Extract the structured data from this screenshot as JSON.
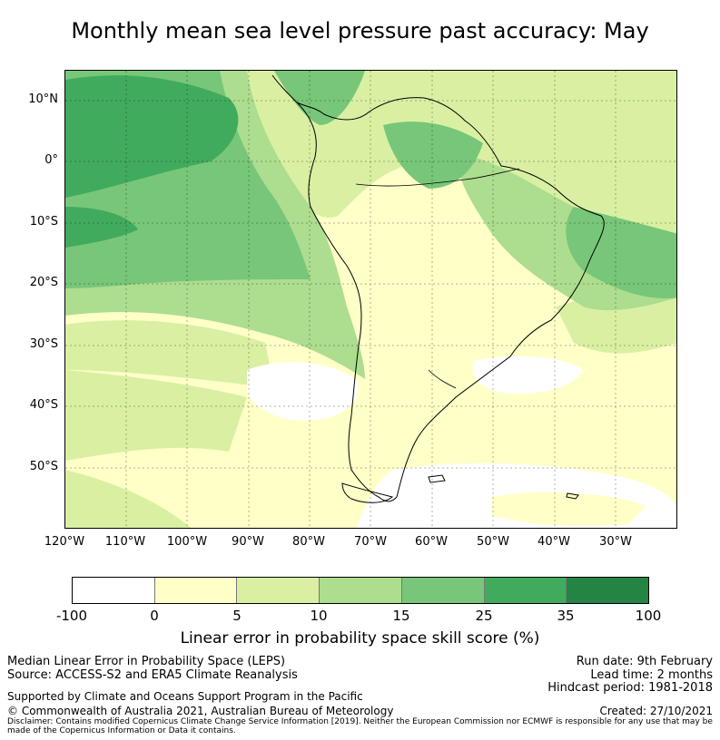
{
  "title": "Monthly mean sea level pressure past accuracy: May",
  "map": {
    "lat_labels": [
      "10°N",
      "0°",
      "10°S",
      "20°S",
      "30°S",
      "40°S",
      "50°S"
    ],
    "lon_labels": [
      "120°W",
      "110°W",
      "100°W",
      "90°W",
      "80°W",
      "70°W",
      "60°W",
      "50°W",
      "40°W",
      "30°W"
    ],
    "region": "South America and surrounding Pacific and Atlantic oceans"
  },
  "colorbar": {
    "ticks": [
      "-100",
      "0",
      "5",
      "10",
      "15",
      "25",
      "35",
      "100"
    ],
    "colors": [
      "#ffffff",
      "#ffffc8",
      "#d9f0a3",
      "#addd8e",
      "#78c679",
      "#41ab5d",
      "#238443"
    ],
    "label": "Linear error in probability space skill score (%)"
  },
  "footer": {
    "left": [
      "Median Linear Error in Probability Space (LEPS)",
      "Source: ACCESS-S2 and ERA5 Climate Reanalysis"
    ],
    "right": [
      "Run date: 9th February",
      "Lead time: 2 months",
      "Hindcast period: 1981-2018"
    ],
    "support": "Supported by Climate and Oceans Support Program in the Pacific",
    "copyright": "© Commonwealth of Australia 2021, Australian Bureau of Meteorology",
    "created": "Created: 27/10/2021",
    "disclaimer": "Disclaimer: Contains modified Copernicus Climate Change Service Information [2019]. Neither the European Commission nor ECMWF is responsible for any use that may be made of the Copernicus Information or Data it contains."
  }
}
